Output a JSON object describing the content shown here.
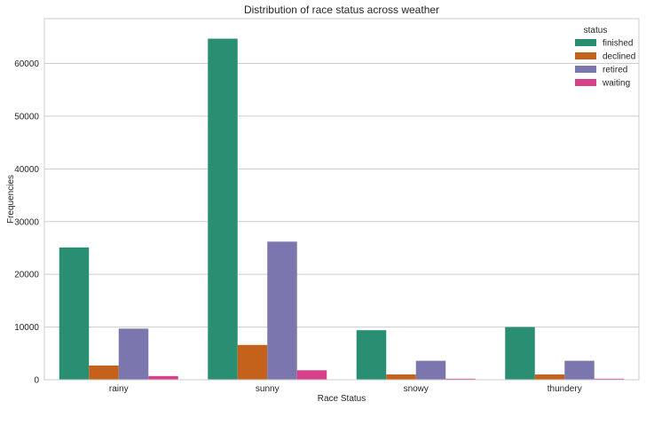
{
  "chart_data": {
    "type": "bar",
    "title": "Distribution of race status across weather",
    "xlabel": "Race Status",
    "ylabel": "Frequencies",
    "categories": [
      "rainy",
      "sunny",
      "snowy",
      "thundery"
    ],
    "ylim": [
      0,
      68500
    ],
    "yticks": [
      0,
      10000,
      20000,
      30000,
      40000,
      50000,
      60000
    ],
    "grid": "horizontal",
    "legend": {
      "title": "status",
      "placement": "top-right"
    },
    "series": [
      {
        "name": "finished",
        "color": "#2a8f72",
        "values": [
          25100,
          64700,
          9400,
          10000
        ]
      },
      {
        "name": "declined",
        "color": "#c4621c",
        "values": [
          2700,
          6600,
          1000,
          1000
        ]
      },
      {
        "name": "retired",
        "color": "#7b76ad",
        "values": [
          9700,
          26200,
          3600,
          3600
        ]
      },
      {
        "name": "waiting",
        "color": "#d5428a",
        "values": [
          700,
          1800,
          200,
          200
        ]
      }
    ]
  }
}
